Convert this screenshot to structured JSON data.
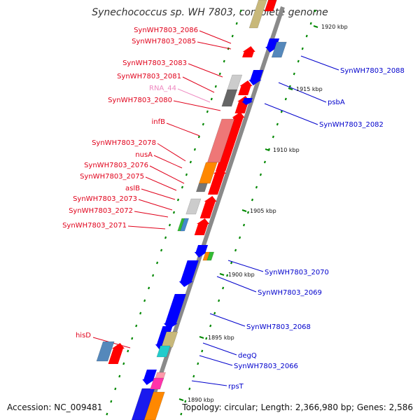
{
  "title": "Synechococcus sp. WH 7803, complete genome",
  "footer": {
    "accession": "Accession: NC_009481",
    "summary": "Topology: circular; Length: 2,366,980 bp; Genes: 2,586"
  },
  "colors": {
    "forward_label": "#e0001a",
    "reverse_label": "#0000cc",
    "rna_label": "#ee88c0",
    "backbone": "#888888",
    "tick": "#008800"
  },
  "scale_ticks": [
    {
      "label": "1920 kbp"
    },
    {
      "label": "1915 kbp"
    },
    {
      "label": "1910 kbp"
    },
    {
      "label": "1905 kbp"
    },
    {
      "label": "1900 kbp"
    },
    {
      "label": "1895 kbp"
    },
    {
      "label": "1890 kbp"
    }
  ],
  "forward_labels": [
    {
      "text": "SynWH7803_2086"
    },
    {
      "text": "SynWH7803_2085"
    },
    {
      "text": "SynWH7803_2083"
    },
    {
      "text": "SynWH7803_2081"
    },
    {
      "text": "RNA_44"
    },
    {
      "text": "SynWH7803_2080"
    },
    {
      "text": "infB"
    },
    {
      "text": "SynWH7803_2078"
    },
    {
      "text": "nusA"
    },
    {
      "text": "SynWH7803_2076"
    },
    {
      "text": "SynWH7803_2075"
    },
    {
      "text": "aslB"
    },
    {
      "text": "SynWH7803_2073"
    },
    {
      "text": "SynWH7803_2072"
    },
    {
      "text": "SynWH7803_2071"
    },
    {
      "text": "hisD"
    }
  ],
  "reverse_labels": [
    {
      "text": "SynWH7803_2088"
    },
    {
      "text": "psbA"
    },
    {
      "text": "SynWH7803_2082"
    },
    {
      "text": "SynWH7803_2070"
    },
    {
      "text": "SynWH7803_2069"
    },
    {
      "text": "SynWH7803_2068"
    },
    {
      "text": "degQ"
    },
    {
      "text": "SynWH7803_2066"
    },
    {
      "text": "rpsT"
    }
  ]
}
